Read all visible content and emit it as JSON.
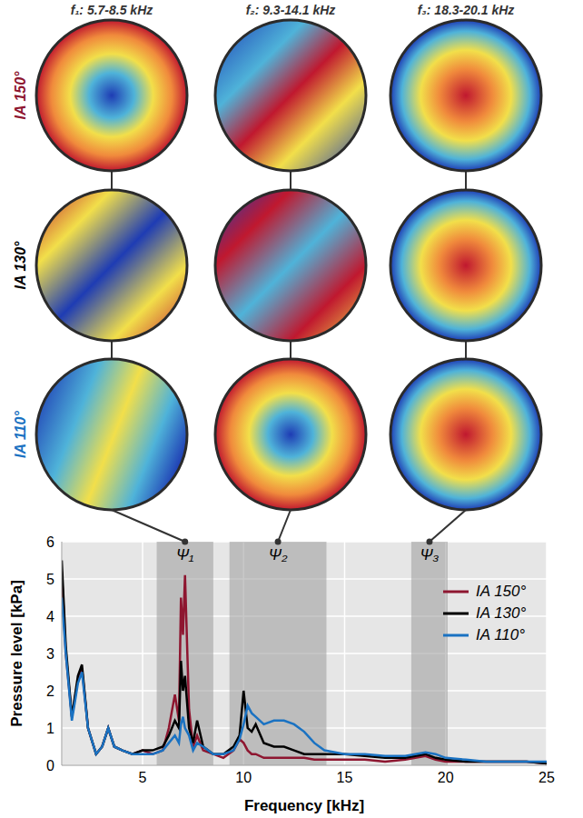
{
  "chart_data": {
    "type": "line",
    "x_label": "Frequency [kHz]",
    "y_label": "Pressure level [kPa]",
    "xlim": [
      1,
      25
    ],
    "xticks": [
      5,
      10,
      15,
      20,
      25
    ],
    "ylim": [
      0,
      6
    ],
    "yticks": [
      0,
      1,
      2,
      3,
      4,
      5,
      6
    ],
    "grid": true,
    "legend": "upper right",
    "x": [
      1,
      1.2,
      1.5,
      1.8,
      2.0,
      2.3,
      2.7,
      3.0,
      3.3,
      3.6,
      4.0,
      4.5,
      5.0,
      5.5,
      6.0,
      6.3,
      6.6,
      6.8,
      6.9,
      7.0,
      7.1,
      7.3,
      7.5,
      7.7,
      8.0,
      8.5,
      9.0,
      9.5,
      9.8,
      10.0,
      10.2,
      10.4,
      10.6,
      11.0,
      11.5,
      12.0,
      12.5,
      13.0,
      13.5,
      14.0,
      15.0,
      16.0,
      17.0,
      18.0,
      19.0,
      19.5,
      20.0,
      21.0,
      22.0,
      23.0,
      24.0,
      25.0
    ],
    "series": [
      {
        "name": "IA 150°",
        "color": "#8e1630",
        "values": [
          5.2,
          3.0,
          1.3,
          2.3,
          2.6,
          1.0,
          0.3,
          0.5,
          1.0,
          0.5,
          0.4,
          0.3,
          0.4,
          0.3,
          0.4,
          1.0,
          1.9,
          1.2,
          4.5,
          3.5,
          5.1,
          1.5,
          0.5,
          0.8,
          0.4,
          0.3,
          0.2,
          0.4,
          0.7,
          0.6,
          0.4,
          0.3,
          0.3,
          0.2,
          0.2,
          0.2,
          0.2,
          0.2,
          0.15,
          0.15,
          0.15,
          0.15,
          0.1,
          0.15,
          0.25,
          0.15,
          0.1,
          0.1,
          0.1,
          0.1,
          0.1,
          0.05
        ]
      },
      {
        "name": "IA 130°",
        "color": "#000000",
        "values": [
          5.5,
          3.2,
          1.3,
          2.4,
          2.7,
          1.0,
          0.3,
          0.5,
          1.0,
          0.5,
          0.4,
          0.3,
          0.4,
          0.4,
          0.5,
          0.8,
          1.2,
          1.0,
          2.8,
          2.0,
          2.4,
          1.0,
          0.6,
          1.2,
          0.5,
          0.3,
          0.3,
          0.5,
          0.8,
          2.0,
          1.0,
          0.9,
          1.1,
          0.6,
          0.5,
          0.5,
          0.4,
          0.3,
          0.3,
          0.3,
          0.3,
          0.25,
          0.2,
          0.2,
          0.3,
          0.2,
          0.15,
          0.1,
          0.1,
          0.1,
          0.1,
          0.05
        ]
      },
      {
        "name": "IA 110°",
        "color": "#1a72c2",
        "values": [
          4.5,
          3.0,
          1.2,
          2.2,
          2.5,
          1.0,
          0.3,
          0.5,
          1.0,
          0.5,
          0.4,
          0.3,
          0.3,
          0.3,
          0.4,
          0.6,
          0.8,
          0.6,
          1.1,
          1.3,
          1.0,
          0.8,
          0.4,
          0.6,
          0.5,
          0.3,
          0.3,
          0.4,
          0.7,
          1.1,
          1.6,
          1.4,
          1.3,
          1.1,
          1.2,
          1.2,
          1.1,
          0.9,
          0.6,
          0.4,
          0.3,
          0.3,
          0.25,
          0.25,
          0.35,
          0.3,
          0.2,
          0.15,
          0.1,
          0.1,
          0.1,
          0.1
        ]
      }
    ],
    "bands": [
      {
        "label": "Ψ₁",
        "x": [
          5.7,
          8.5
        ]
      },
      {
        "label": "Ψ₂",
        "x": [
          9.3,
          14.1
        ]
      },
      {
        "label": "Ψ₃",
        "x": [
          18.3,
          20.1
        ]
      }
    ]
  },
  "mode_shapes": {
    "columns": [
      "f₁: 5.7-8.5 kHz",
      "f₂: 9.3-14.1 kHz",
      "f₃: 18.3-20.1 kHz"
    ]
  }
}
